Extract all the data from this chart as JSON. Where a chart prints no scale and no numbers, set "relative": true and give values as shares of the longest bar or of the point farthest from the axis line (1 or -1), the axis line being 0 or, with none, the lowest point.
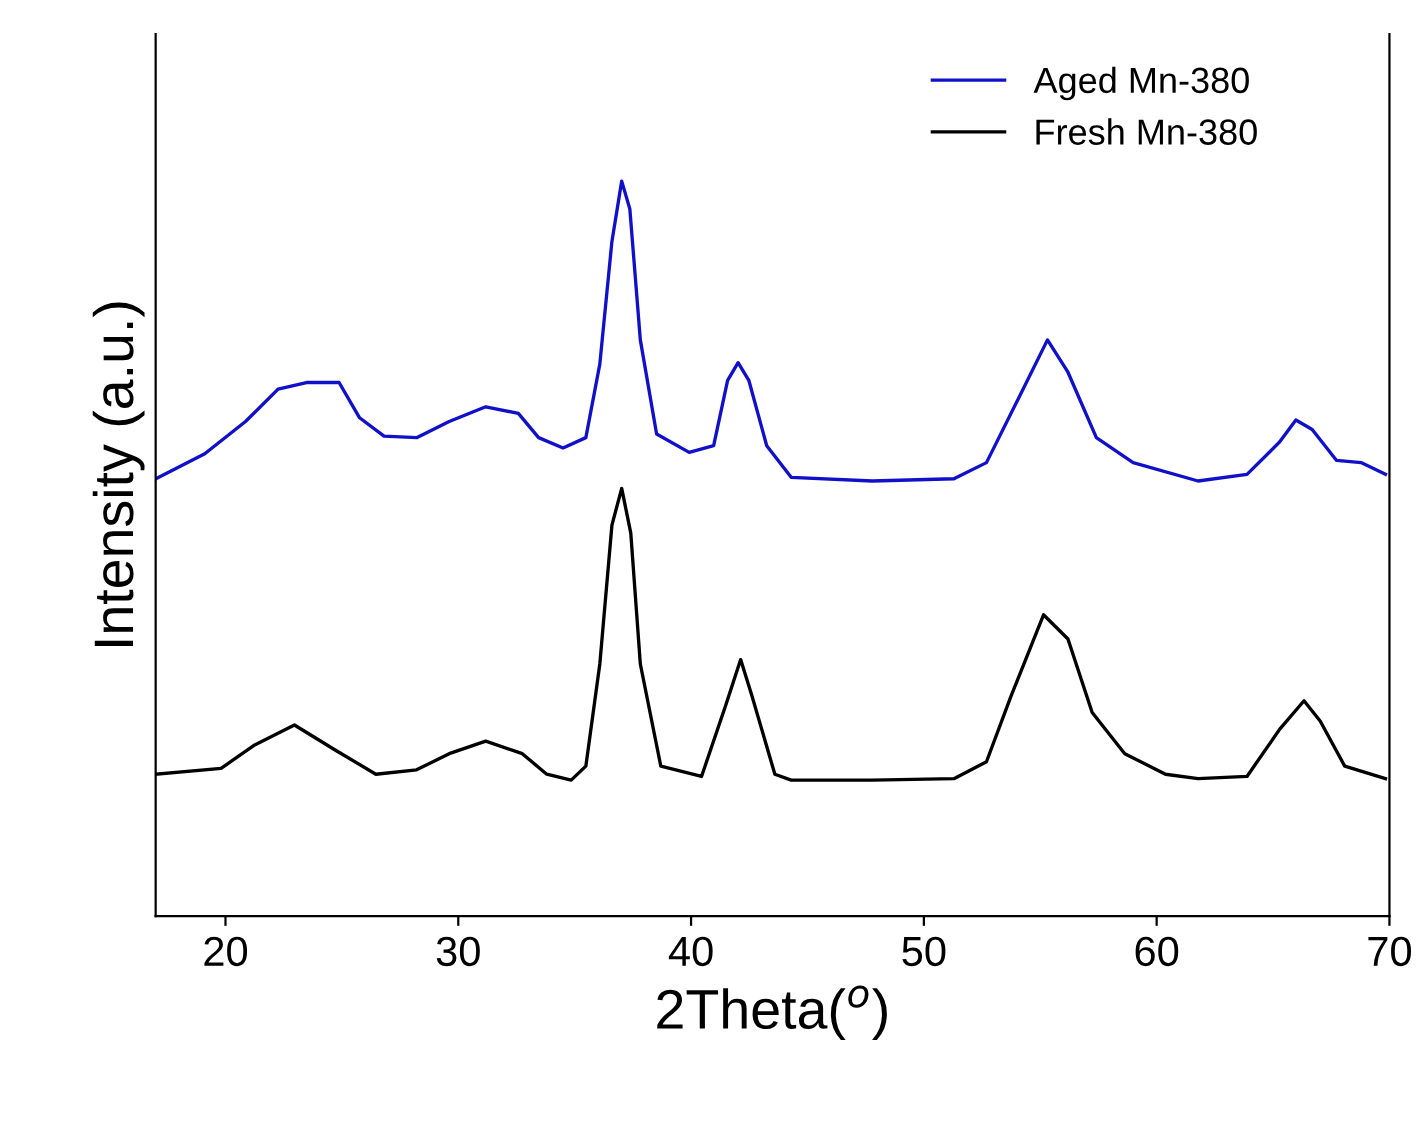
{
  "chart_data": {
    "type": "line",
    "relative": true,
    "xlabel": "2Theta($^{o}$)",
    "ylabel": "Intensity (a.u.)",
    "xlim": [
      17,
      70
    ],
    "xticks": [
      20,
      30,
      40,
      50,
      60,
      70
    ],
    "legend": "top right",
    "grid": false,
    "series": [
      {
        "name": "Aged Mn-380",
        "color": "#1010c8",
        "x": [
          17.01,
          19.11,
          20.86,
          22.26,
          23.48,
          24.88,
          25.76,
          26.81,
          28.21,
          29.61,
          31.18,
          32.58,
          33.45,
          34.5,
          35.48,
          36.08,
          36.6,
          37.02,
          37.37,
          37.82,
          38.52,
          39.92,
          40.97,
          41.57,
          42.02,
          42.48,
          43.25,
          44.3,
          47.79,
          51.29,
          52.69,
          54.09,
          55.31,
          56.19,
          57.41,
          58.99,
          61.78,
          63.88,
          65.28,
          65.98,
          66.68,
          67.73,
          68.78,
          69.83
        ],
        "values": [
          0.595,
          0.629,
          0.673,
          0.717,
          0.726,
          0.726,
          0.678,
          0.653,
          0.651,
          0.673,
          0.693,
          0.684,
          0.651,
          0.637,
          0.651,
          0.751,
          0.918,
          1,
          0.962,
          0.784,
          0.656,
          0.631,
          0.64,
          0.729,
          0.753,
          0.729,
          0.64,
          0.597,
          0.592,
          0.595,
          0.617,
          0.706,
          0.784,
          0.74,
          0.651,
          0.617,
          0.592,
          0.601,
          0.645,
          0.675,
          0.662,
          0.62,
          0.617,
          0.601
        ]
      },
      {
        "name": "Fresh Mn-380",
        "color": "#000000",
        "x": [
          17.01,
          19.81,
          21.21,
          22.96,
          24.71,
          26.46,
          28.21,
          29.61,
          31.18,
          32.75,
          33.8,
          34.85,
          35.48,
          36.08,
          36.6,
          37.02,
          37.41,
          37.82,
          38.7,
          40.45,
          41.5,
          42.13,
          42.62,
          43.6,
          44.3,
          47.79,
          51.29,
          52.69,
          53.74,
          55.14,
          56.19,
          57.23,
          58.63,
          60.38,
          61.78,
          63.88,
          65.28,
          66.33,
          67.03,
          68.08,
          69.83
        ],
        "values": [
          0.193,
          0.201,
          0.232,
          0.26,
          0.226,
          0.193,
          0.199,
          0.221,
          0.238,
          0.221,
          0.193,
          0.185,
          0.204,
          0.343,
          0.532,
          0.582,
          0.521,
          0.343,
          0.204,
          0.19,
          0.288,
          0.349,
          0.299,
          0.193,
          0.185,
          0.185,
          0.187,
          0.21,
          0.299,
          0.41,
          0.377,
          0.277,
          0.221,
          0.193,
          0.187,
          0.19,
          0.254,
          0.293,
          0.265,
          0.204,
          0.187
        ]
      }
    ]
  }
}
